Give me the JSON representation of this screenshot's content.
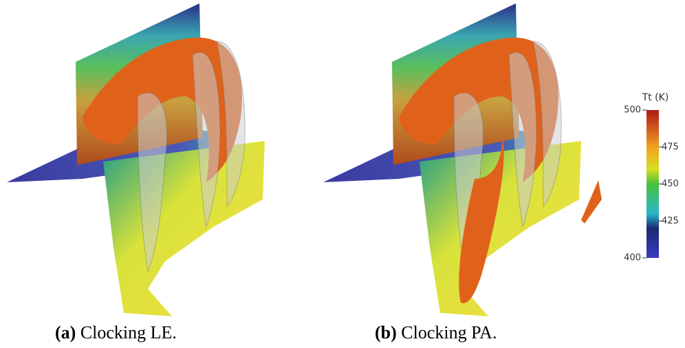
{
  "panels": [
    {
      "label": "(a)",
      "caption": "Clocking LE."
    },
    {
      "label": "(b)",
      "caption": "Clocking PA."
    }
  ],
  "colorbar": {
    "title": "Tt (K)",
    "range": [
      400,
      500
    ],
    "ticks": [
      400,
      425,
      450,
      475,
      500
    ]
  }
}
